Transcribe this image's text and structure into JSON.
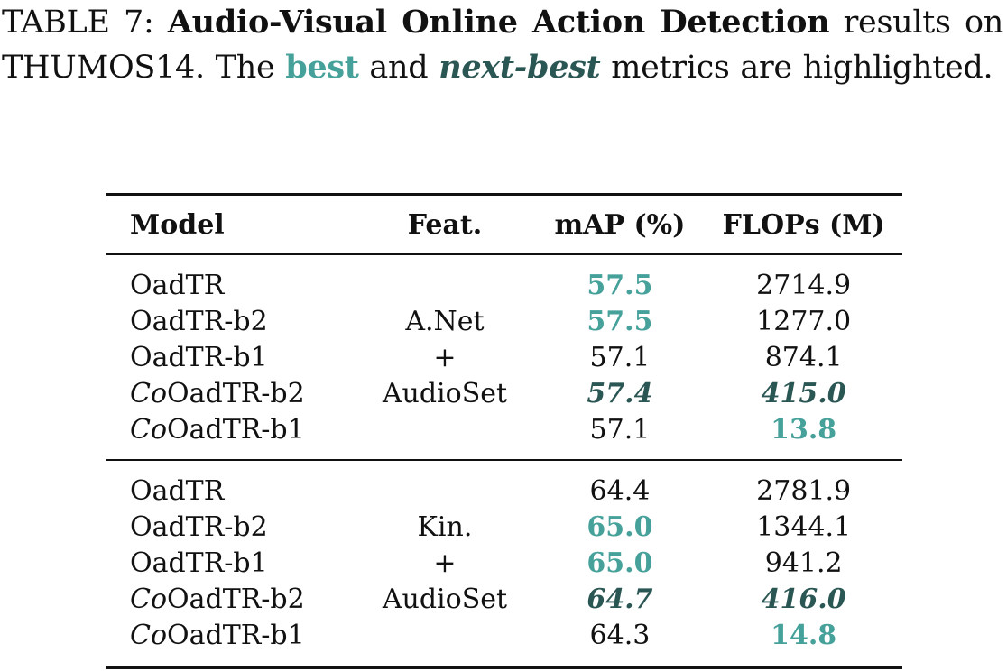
{
  "caption": {
    "prefix": "TABLE 7: ",
    "bold_title": "Audio-Visual Online Action Detection",
    "middle": " results on THUMOS14. The ",
    "best_word": "best",
    "and_word": " and ",
    "next_best_word": "next-best",
    "suffix": " metrics are highlighted."
  },
  "legend_colors": {
    "best": "#45a19a",
    "next_best": "#2a5653"
  },
  "table": {
    "headers": [
      "Model",
      "Feat.",
      "mAP (%)",
      "FLOPs (M)"
    ],
    "groups": [
      {
        "feature_lines": [
          "A.Net",
          "+",
          "AudioSet"
        ],
        "rows": [
          {
            "co_prefix": "",
            "model": "OadTR",
            "map": "57.5",
            "map_style": "best",
            "flops": "2714.9",
            "flops_style": ""
          },
          {
            "co_prefix": "",
            "model": "OadTR-b2",
            "map": "57.5",
            "map_style": "best",
            "flops": "1277.0",
            "flops_style": ""
          },
          {
            "co_prefix": "",
            "model": "OadTR-b1",
            "map": "57.1",
            "map_style": "",
            "flops": "874.1",
            "flops_style": ""
          },
          {
            "co_prefix": "Co",
            "model": "OadTR-b2",
            "map": "57.4",
            "map_style": "next",
            "flops": "415.0",
            "flops_style": "next"
          },
          {
            "co_prefix": "Co",
            "model": "OadTR-b1",
            "map": "57.1",
            "map_style": "",
            "flops": "13.8",
            "flops_style": "best"
          }
        ]
      },
      {
        "feature_lines": [
          "Kin.",
          "+",
          "AudioSet"
        ],
        "rows": [
          {
            "co_prefix": "",
            "model": "OadTR",
            "map": "64.4",
            "map_style": "",
            "flops": "2781.9",
            "flops_style": ""
          },
          {
            "co_prefix": "",
            "model": "OadTR-b2",
            "map": "65.0",
            "map_style": "best",
            "flops": "1344.1",
            "flops_style": ""
          },
          {
            "co_prefix": "",
            "model": "OadTR-b1",
            "map": "65.0",
            "map_style": "best",
            "flops": "941.2",
            "flops_style": ""
          },
          {
            "co_prefix": "Co",
            "model": "OadTR-b2",
            "map": "64.7",
            "map_style": "next",
            "flops": "416.0",
            "flops_style": "next"
          },
          {
            "co_prefix": "Co",
            "model": "OadTR-b1",
            "map": "64.3",
            "map_style": "",
            "flops": "14.8",
            "flops_style": "best"
          }
        ]
      }
    ]
  }
}
